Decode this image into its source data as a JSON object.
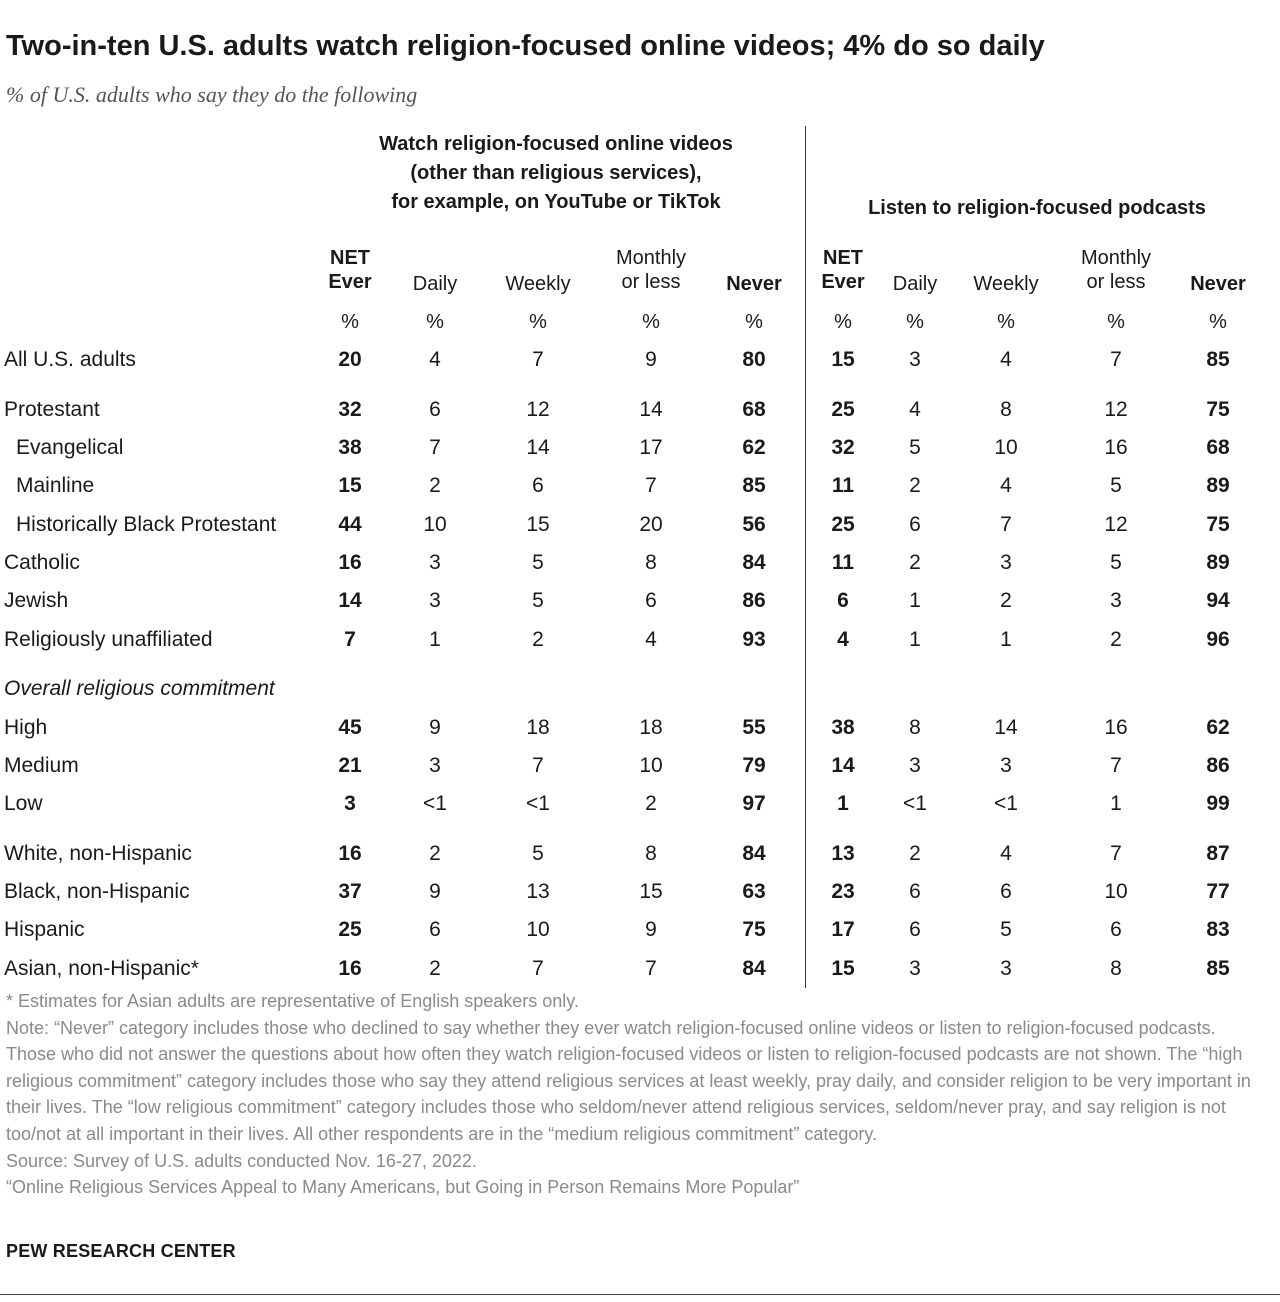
{
  "chart_data": {
    "type": "table",
    "title": "Two-in-ten U.S. adults watch religion-focused online videos; 4% do so daily",
    "subtitle": "% of U.S. adults who say they do the following",
    "groups": [
      {
        "title": "Watch religion-focused online videos\n(other than religious services),\nfor example, on YouTube or TikTok",
        "columns": [
          "NET\nEver",
          "Daily",
          "Weekly",
          "Monthly\nor less",
          "Never"
        ]
      },
      {
        "title": "Listen to religion-focused podcasts",
        "columns": [
          "NET\nEver",
          "Daily",
          "Weekly",
          "Monthly\nor less",
          "Never"
        ]
      }
    ],
    "unit_symbol": "%",
    "rows": [
      {
        "label": "All U.S. adults",
        "values": [
          "20",
          "4",
          "7",
          "9",
          "80",
          "15",
          "3",
          "4",
          "7",
          "85"
        ]
      },
      {
        "label": "Protestant",
        "values": [
          "32",
          "6",
          "12",
          "14",
          "68",
          "25",
          "4",
          "8",
          "12",
          "75"
        ]
      },
      {
        "label": "Evangelical",
        "values": [
          "38",
          "7",
          "14",
          "17",
          "62",
          "32",
          "5",
          "10",
          "16",
          "68"
        ]
      },
      {
        "label": "Mainline",
        "values": [
          "15",
          "2",
          "6",
          "7",
          "85",
          "11",
          "2",
          "4",
          "5",
          "89"
        ]
      },
      {
        "label": "Historically Black Protestant",
        "values": [
          "44",
          "10",
          "15",
          "20",
          "56",
          "25",
          "6",
          "7",
          "12",
          "75"
        ]
      },
      {
        "label": "Catholic",
        "values": [
          "16",
          "3",
          "5",
          "8",
          "84",
          "11",
          "2",
          "3",
          "5",
          "89"
        ]
      },
      {
        "label": "Jewish",
        "values": [
          "14",
          "3",
          "5",
          "6",
          "86",
          "6",
          "1",
          "2",
          "3",
          "94"
        ]
      },
      {
        "label": "Religiously unaffiliated",
        "values": [
          "7",
          "1",
          "2",
          "4",
          "93",
          "4",
          "1",
          "1",
          "2",
          "96"
        ]
      },
      {
        "label": "Overall religious commitment",
        "values": []
      },
      {
        "label": "High",
        "values": [
          "45",
          "9",
          "18",
          "18",
          "55",
          "38",
          "8",
          "14",
          "16",
          "62"
        ]
      },
      {
        "label": "Medium",
        "values": [
          "21",
          "3",
          "7",
          "10",
          "79",
          "14",
          "3",
          "3",
          "7",
          "86"
        ]
      },
      {
        "label": "Low",
        "values": [
          "3",
          "<1",
          "<1",
          "2",
          "97",
          "1",
          "<1",
          "<1",
          "1",
          "99"
        ]
      },
      {
        "label": "White, non-Hispanic",
        "values": [
          "16",
          "2",
          "5",
          "8",
          "84",
          "13",
          "2",
          "4",
          "7",
          "87"
        ]
      },
      {
        "label": "Black, non-Hispanic",
        "values": [
          "37",
          "9",
          "13",
          "15",
          "63",
          "23",
          "6",
          "6",
          "10",
          "77"
        ]
      },
      {
        "label": "Hispanic",
        "values": [
          "25",
          "6",
          "10",
          "9",
          "75",
          "17",
          "6",
          "5",
          "6",
          "83"
        ]
      },
      {
        "label": "Asian, non-Hispanic*",
        "values": [
          "16",
          "2",
          "7",
          "7",
          "84",
          "15",
          "3",
          "3",
          "8",
          "85"
        ]
      }
    ]
  },
  "notes": [
    "* Estimates for Asian adults are representative of English speakers only.",
    "Note: “Never” category includes those who declined to say whether they ever watch religion-focused online videos or listen to religion-focused podcasts. Those who did not answer the questions about how often they watch religion-focused videos or listen to religion-focused podcasts are not shown. The “high religious commitment” category includes those who say they attend religious services at least weekly, pray daily, and consider religion to be very important in their lives. The “low religious commitment” category includes those who seldom/never attend religious services, seldom/never pray, and say religion is not too/not at all important in their lives. All other respondents are in the “medium religious commitment” category.",
    "Source: Survey of U.S. adults conducted Nov. 16-27, 2022.",
    "“Online Religious Services Appeal to Many Americans, but Going in Person Remains More Popular”"
  ],
  "brand": "PEW RESEARCH CENTER"
}
